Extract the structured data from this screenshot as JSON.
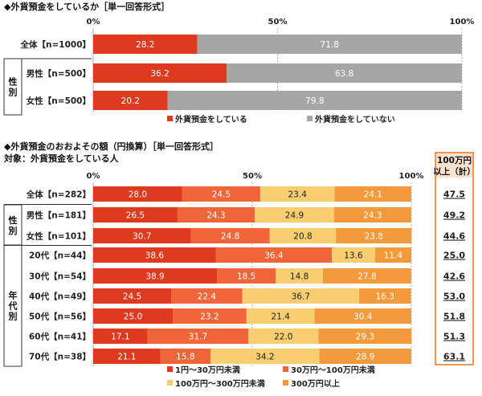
{
  "chart_data": [
    {
      "type": "bar",
      "title": "◆外貨預金をしているか［単一回答形式］",
      "xlim": [
        0,
        100
      ],
      "ticks": [
        "0%",
        "50%",
        "100%"
      ],
      "categories": [
        "全体【n=1000】",
        "男性【n=500】",
        "女性【n=500】"
      ],
      "groups": [
        {
          "label": "性別",
          "rows": [
            1,
            2
          ]
        }
      ],
      "series": [
        {
          "name": "外貨預金をしている",
          "color": "#dd3a1f",
          "values": [
            28.2,
            36.2,
            20.2
          ]
        },
        {
          "name": "外貨預金をしていない",
          "color": "#a6a6a6",
          "values": [
            71.8,
            63.8,
            79.8
          ]
        }
      ],
      "legend": "bottom"
    },
    {
      "type": "bar",
      "title": "◆外貨預金のおおよその額（円換算）［単一回答形式］",
      "subtitle": "対象：外貨預金をしている人",
      "xlim": [
        0,
        100
      ],
      "ticks": [
        "0%",
        "50%",
        "100%"
      ],
      "categories": [
        "全体【n=282】",
        "男性【n=181】",
        "女性【n=101】",
        "20代【n=44】",
        "30代【n=54】",
        "40代【n=49】",
        "50代【n=56】",
        "60代【n=41】",
        "70代【n=38】"
      ],
      "groups": [
        {
          "label": "性別",
          "rows": [
            1,
            2
          ]
        },
        {
          "label": "年代別",
          "rows": [
            3,
            8
          ]
        }
      ],
      "series": [
        {
          "name": "1円～30万円未満",
          "color": "#dd3a1f",
          "values": [
            28.0,
            26.5,
            30.7,
            38.6,
            38.9,
            24.5,
            25.0,
            17.1,
            21.1
          ]
        },
        {
          "name": "30万円～100万円未満",
          "color": "#f0663a",
          "values": [
            24.5,
            24.3,
            24.8,
            36.4,
            18.5,
            22.4,
            23.2,
            31.7,
            15.8
          ]
        },
        {
          "name": "100万円～300万円未満",
          "color": "#f8ce71",
          "values": [
            23.4,
            24.9,
            20.8,
            13.6,
            14.8,
            36.7,
            21.4,
            22.0,
            34.2
          ]
        },
        {
          "name": "300万円以上",
          "color": "#f39a3c",
          "values": [
            24.1,
            24.3,
            23.8,
            11.4,
            27.8,
            16.3,
            30.4,
            29.3,
            28.9
          ]
        }
      ],
      "totals_header": [
        "100万円",
        "以上（計）"
      ],
      "totals": [
        "47.5",
        "49.2",
        "44.6",
        "25.0",
        "42.6",
        "53.0",
        "51.8",
        "51.3",
        "63.1"
      ],
      "legend": "bottom"
    }
  ]
}
